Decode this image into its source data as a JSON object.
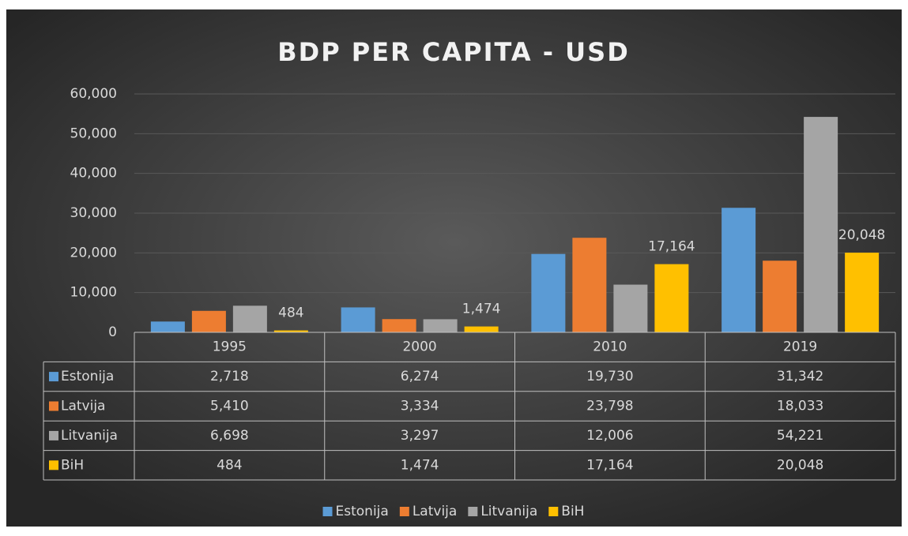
{
  "chart_data": {
    "type": "bar",
    "title": "BDP PER CAPITA - USD",
    "categories": [
      "1995",
      "2000",
      "2010",
      "2019"
    ],
    "series": [
      {
        "name": "Estonija",
        "color": "#5b9bd5",
        "values": [
          2718,
          6274,
          19730,
          31342
        ],
        "value_labels": [
          "2,718",
          "6,274",
          "19,730",
          "31,342"
        ]
      },
      {
        "name": "Latvija",
        "color": "#ed7d31",
        "values": [
          5410,
          3334,
          23798,
          18033
        ],
        "value_labels": [
          "5,410",
          "3,334",
          "23,798",
          "18,033"
        ]
      },
      {
        "name": "Litvanija",
        "color": "#a5a5a5",
        "values": [
          6698,
          3297,
          12006,
          54221
        ],
        "value_labels": [
          "6,698",
          "3,297",
          "12,006",
          "54,221"
        ]
      },
      {
        "name": "BiH",
        "color": "#ffc000",
        "values": [
          484,
          1474,
          17164,
          20048
        ],
        "value_labels": [
          "484",
          "1,474",
          "17,164",
          "20,048"
        ],
        "data_labels": true
      }
    ],
    "ylim": [
      0,
      60000
    ],
    "yticks": [
      0,
      {
        "value": 10000,
        "label": "10,000"
      },
      {
        "value": 20000,
        "label": "20,000"
      },
      {
        "value": 30000,
        "label": "30,000"
      },
      {
        "value": 40000,
        "label": "40,000"
      },
      {
        "value": 50000,
        "label": "50,000"
      },
      {
        "value": 60000,
        "label": "60,000"
      }
    ],
    "grid": true,
    "data_table": true,
    "legend": "bottom"
  }
}
